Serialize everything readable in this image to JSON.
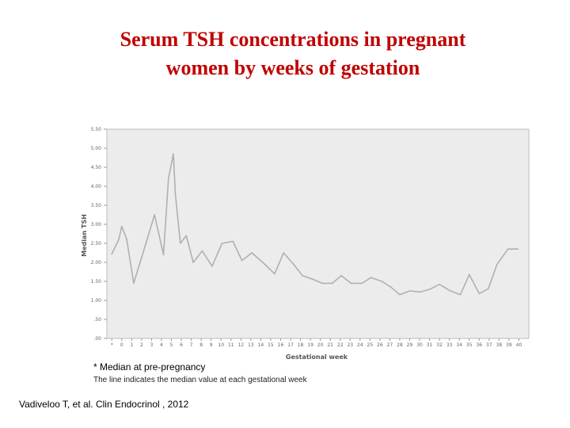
{
  "title": {
    "line1": "Serum TSH concentrations in pregnant",
    "line2": "women by weeks of gestation"
  },
  "notes": {
    "pre_pregnancy": "* Median at pre-pregnancy",
    "line_desc": "The line indicates the median value at each gestational week"
  },
  "citation": "Vadiveloo T, et al. Clin Endocrinol , 2012",
  "colors": {
    "title": "#c00000",
    "plot_bg": "#ececec",
    "line": "#b0b0b0"
  },
  "chart_data": {
    "type": "line",
    "xlabel": "Gestational week",
    "ylabel": "Median TSH",
    "ylim": [
      0,
      5.5
    ],
    "yticks": [
      ".00",
      ".50",
      "1.00",
      "1.50",
      "2.00",
      "2.50",
      "3.00",
      "3.50",
      "4.00",
      "4.50",
      "5.00",
      "5.50"
    ],
    "categories": [
      "*",
      "0",
      "1",
      "2",
      "3",
      "4",
      "5",
      "6",
      "7",
      "8",
      "9",
      "10",
      "11",
      "12",
      "13",
      "14",
      "15",
      "16",
      "17",
      "18",
      "19",
      "20",
      "21",
      "22",
      "23",
      "24",
      "25",
      "26",
      "27",
      "28",
      "29",
      "30",
      "31",
      "32",
      "33",
      "34",
      "35",
      "36",
      "37",
      "38",
      "39",
      "40"
    ],
    "x": [
      -1,
      -0.3,
      0,
      0.5,
      1.2,
      2.2,
      3.3,
      4.2,
      4.7,
      5.2,
      5.4,
      5.9,
      6.5,
      7.2,
      8.1,
      9.1,
      10.1,
      11.2,
      12.1,
      13.1,
      14.2,
      15.4,
      16.3,
      17.3,
      18.2,
      19.3,
      20.2,
      21.2,
      22.1,
      23.1,
      24.2,
      25.1,
      26.2,
      27.1,
      28.0,
      29.0,
      30.1,
      31.1,
      32.0,
      33.1,
      34.1,
      35.0,
      36.0,
      36.9,
      37.8,
      38.9,
      39.9
    ],
    "y": [
      2.22,
      2.6,
      2.95,
      2.6,
      1.45,
      2.3,
      3.25,
      2.2,
      4.2,
      4.85,
      3.8,
      2.5,
      2.7,
      2.0,
      2.3,
      1.9,
      2.5,
      2.55,
      2.05,
      2.25,
      2.0,
      1.7,
      2.25,
      1.95,
      1.65,
      1.55,
      1.45,
      1.45,
      1.65,
      1.45,
      1.45,
      1.6,
      1.5,
      1.35,
      1.15,
      1.25,
      1.22,
      1.3,
      1.42,
      1.25,
      1.15,
      1.68,
      1.18,
      1.3,
      1.95,
      2.35,
      2.35
    ],
    "grid": false
  }
}
